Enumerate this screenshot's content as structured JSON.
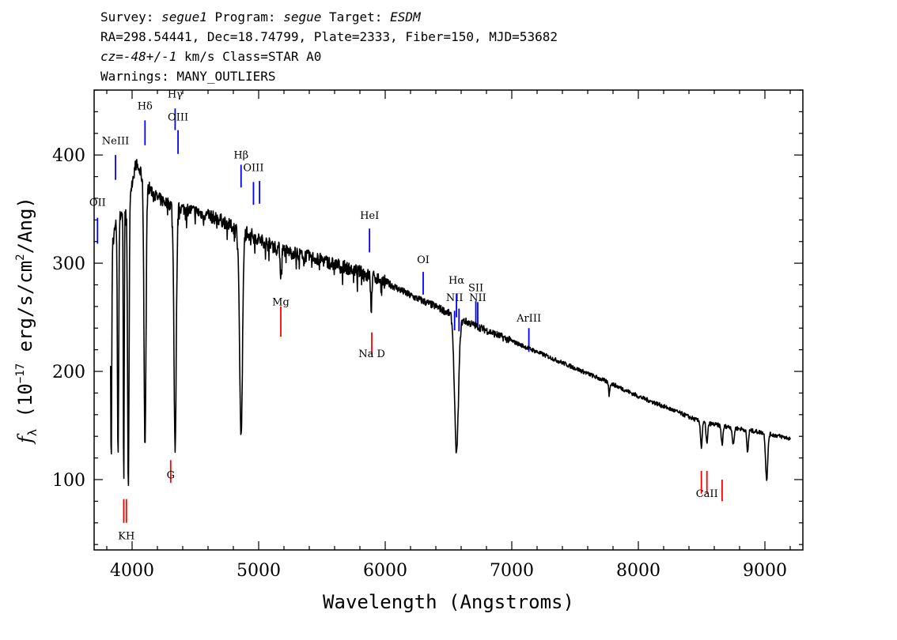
{
  "header": {
    "line1": {
      "survey_label": "Survey: ",
      "survey": "segue1",
      "program_label": " Program: ",
      "program": "segue",
      "target_label": " Target: ",
      "target": "ESDM"
    },
    "line2": "RA=298.54441, Dec=18.74799, Plate=2333, Fiber=150, MJD=53682",
    "line3": {
      "cz_label": "cz=",
      "cz": "-48+/-1",
      "rest": " km/s Class=STAR A0"
    },
    "line4": "Warnings: MANY_OUTLIERS"
  },
  "chart_data": {
    "type": "line",
    "xlabel": "Wavelength (Angstroms)",
    "ylabel": "f_λ (10^-17 erg/s/cm^2/Ang)",
    "ylabel_parts": {
      "f": "f",
      "sub": "λ",
      "pre": " (10",
      "exp1": "−17",
      "mid": " erg/s/cm",
      "exp2": "2",
      "post": "/Ang)"
    },
    "xlim": [
      3700,
      9300
    ],
    "ylim": [
      35,
      460
    ],
    "xticks": [
      4000,
      5000,
      6000,
      7000,
      8000,
      9000
    ],
    "yticks": [
      100,
      200,
      300,
      400
    ],
    "line_color": "#000000",
    "emission_color": "#0000ff",
    "absorption_color": "#ff0000",
    "spectrum": {
      "continuum": [
        [
          3830,
          310
        ],
        [
          3870,
          335
        ],
        [
          3910,
          345
        ],
        [
          3950,
          355
        ],
        [
          3990,
          370
        ],
        [
          4030,
          392
        ],
        [
          4100,
          375
        ],
        [
          4200,
          360
        ],
        [
          4350,
          352
        ],
        [
          4500,
          348
        ],
        [
          4700,
          340
        ],
        [
          4800,
          333
        ],
        [
          4900,
          330
        ],
        [
          5000,
          322
        ],
        [
          5200,
          312
        ],
        [
          5500,
          303
        ],
        [
          5800,
          292
        ],
        [
          6000,
          283
        ],
        [
          6200,
          270
        ],
        [
          6400,
          260
        ],
        [
          6600,
          248
        ],
        [
          6800,
          238
        ],
        [
          7000,
          228
        ],
        [
          7200,
          218
        ],
        [
          7500,
          203
        ],
        [
          7800,
          188
        ],
        [
          8000,
          177
        ],
        [
          8300,
          163
        ],
        [
          8500,
          153
        ],
        [
          8800,
          147
        ],
        [
          9000,
          143
        ],
        [
          9200,
          138
        ]
      ],
      "absorptions": [
        [
          3835,
          115,
          6
        ],
        [
          3889,
          120,
          7
        ],
        [
          3934,
          92,
          5
        ],
        [
          3970,
          85,
          8
        ],
        [
          4102,
          132,
          11
        ],
        [
          4340,
          130,
          13
        ],
        [
          4861,
          138,
          16
        ],
        [
          5175,
          288,
          7
        ],
        [
          5890,
          252,
          5
        ],
        [
          6563,
          125,
          22
        ],
        [
          7770,
          178,
          6
        ],
        [
          8498,
          130,
          9
        ],
        [
          8542,
          133,
          9
        ],
        [
          8662,
          133,
          10
        ],
        [
          8750,
          132,
          10
        ],
        [
          8863,
          125,
          9
        ],
        [
          9014,
          100,
          12
        ]
      ]
    },
    "emission_lines": [
      {
        "name": "OII",
        "wave": 3727,
        "label_y": 353,
        "y_top": 342,
        "y_bottom": 318
      },
      {
        "name": "NeIII",
        "wave": 3869,
        "label_y": 410,
        "y_top": 400,
        "y_bottom": 377
      },
      {
        "name": "Hδ",
        "wave": 4102,
        "label_y": 442,
        "y_top": 432,
        "y_bottom": 409
      },
      {
        "name": "Hγ",
        "wave": 4340,
        "label_y": 453,
        "y_top": 443,
        "y_bottom": 423
      },
      {
        "name": "OIII",
        "wave": 4363,
        "label_y": 432,
        "y_top": 423,
        "y_bottom": 401
      },
      {
        "name": "Hβ",
        "wave": 4861,
        "label_y": 397,
        "y_top": 391,
        "y_bottom": 370
      },
      {
        "name": "OIII",
        "wave": 4959,
        "label_y": 385,
        "y_top": 375,
        "y_bottom": 354
      },
      {
        "name": "",
        "wave": 5007,
        "y_top": 376,
        "y_bottom": 355
      },
      {
        "name": "HeI",
        "wave": 5876,
        "label_y": 341,
        "y_top": 332,
        "y_bottom": 310
      },
      {
        "name": "OI",
        "wave": 6300,
        "label_y": 300,
        "y_top": 292,
        "y_bottom": 271
      },
      {
        "name": "NII",
        "wave": 6548,
        "label_y": 265,
        "y_top": 256,
        "y_bottom": 238
      },
      {
        "name": "Hα",
        "wave": 6563,
        "label_y": 281,
        "y_top": 272,
        "y_bottom": 250
      },
      {
        "name": "",
        "wave": 6583,
        "y_top": 258,
        "y_bottom": 237
      },
      {
        "name": "SII",
        "wave": 6716,
        "label_y": 274,
        "y_top": 265,
        "y_bottom": 243
      },
      {
        "name": "NII",
        "wave": 6731,
        "label_y": 265,
        "y_top": 264,
        "y_bottom": 242
      },
      {
        "name": "ArIII",
        "wave": 7135,
        "label_y": 246,
        "y_top": 240,
        "y_bottom": 218
      }
    ],
    "absorption_lines": [
      {
        "name": "KH",
        "wave": 3955,
        "label_y": 45,
        "y_top": 60,
        "y_bottom": 82
      },
      {
        "name": "",
        "wave": 3934,
        "y_top": 60,
        "y_bottom": 82
      },
      {
        "name": "G",
        "wave": 4305,
        "label_y": 101,
        "y_top": 97,
        "y_bottom": 118
      },
      {
        "name": "Mg",
        "wave": 5175,
        "label_y": 261,
        "y_top": 232,
        "y_bottom": 260
      },
      {
        "name": "Na  D",
        "wave": 5894,
        "label_y": 213,
        "y_top": 215,
        "y_bottom": 236
      },
      {
        "name": "CaII",
        "wave": 8542,
        "label_y": 84,
        "y_top": 87,
        "y_bottom": 108
      },
      {
        "name": "",
        "wave": 8498,
        "y_top": 87,
        "y_bottom": 108
      },
      {
        "name": "",
        "wave": 8662,
        "y_top": 80,
        "y_bottom": 100
      }
    ]
  }
}
